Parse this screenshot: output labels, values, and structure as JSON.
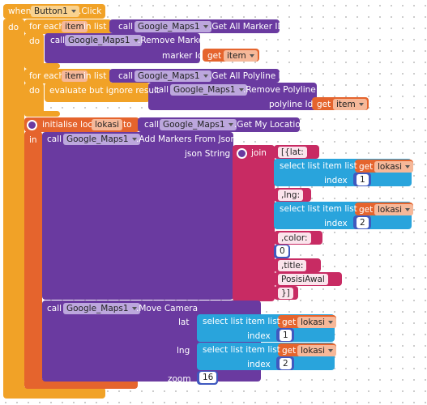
{
  "event": {
    "when": "when",
    "component": "Button1",
    "event": ".Click",
    "do": "do"
  },
  "loop1": {
    "for_each": "for each",
    "var": "item",
    "in_list": "in list",
    "call": "call",
    "component": "Google_Maps1",
    "method": ".Get All Marker IDs",
    "do": "do",
    "body": {
      "call": "call",
      "component": "Google_Maps1",
      "method": ".Remove Marker",
      "param": "marker Id",
      "get": "get",
      "var": "item"
    }
  },
  "loop2": {
    "for_each": "for each",
    "var": "item",
    "in_list": "in list",
    "call": "call",
    "component": "Google_Maps1",
    "method": ".Get All Polyline Ids",
    "do": "do",
    "body": {
      "evaluate": "evaluate but ignore result",
      "call": "call",
      "component": "Google_Maps1",
      "method": ".Remove Polyline",
      "param": "polyline Id",
      "get": "get",
      "var": "item"
    }
  },
  "local": {
    "label": "initialise local",
    "var": "lokasi",
    "to": "to",
    "call": "call",
    "component": "Google_Maps1",
    "method": ".Get My Location",
    "in": "in"
  },
  "add_markers": {
    "call": "call",
    "component": "Google_Maps1",
    "method": ".Add Markers From Json",
    "param": "json String",
    "join": "join",
    "items": [
      {
        "text": "[{lat:"
      },
      {
        "select": "select list item list",
        "get": "get",
        "var": "lokasi",
        "index_label": "index",
        "index": 1
      },
      {
        "text": ",lng:"
      },
      {
        "select": "select list item list",
        "get": "get",
        "var": "lokasi",
        "index_label": "index",
        "index": 2
      },
      {
        "text": ",color:"
      },
      {
        "number": 0
      },
      {
        "text": ",title:"
      },
      {
        "text": "PosisiAwal"
      },
      {
        "text": "}]"
      }
    ]
  },
  "move_camera": {
    "call": "call",
    "component": "Google_Maps1",
    "method": ".Move Camera",
    "lat": "lat",
    "lat_value": {
      "select": "select list item list",
      "get": "get",
      "var": "lokasi",
      "index_label": "index",
      "index": 1
    },
    "lng": "lng",
    "lng_value": {
      "select": "select list item list",
      "get": "get",
      "var": "lokasi",
      "index_label": "index",
      "index": 2
    },
    "zoom": "zoom",
    "zoom_value": 16
  }
}
